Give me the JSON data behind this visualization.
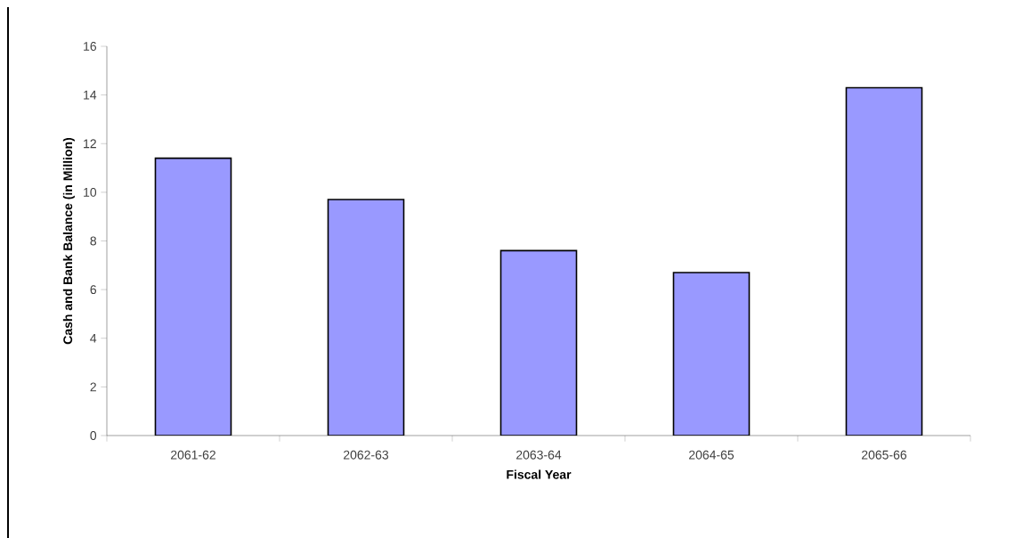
{
  "chart_data": {
    "type": "bar",
    "xlabel": "Fiscal Year",
    "ylabel": "Cash and Bank Balance (in Million)",
    "categories": [
      "2061-62",
      "2062-63",
      "2063-64",
      "2064-65",
      "2065-66"
    ],
    "values": [
      11.4,
      9.7,
      7.6,
      6.7,
      14.3
    ],
    "color": "#9999ff",
    "ylim": [
      0,
      16
    ],
    "yticks": [
      0,
      2,
      4,
      6,
      8,
      10,
      12,
      14,
      16
    ],
    "grid": false
  }
}
